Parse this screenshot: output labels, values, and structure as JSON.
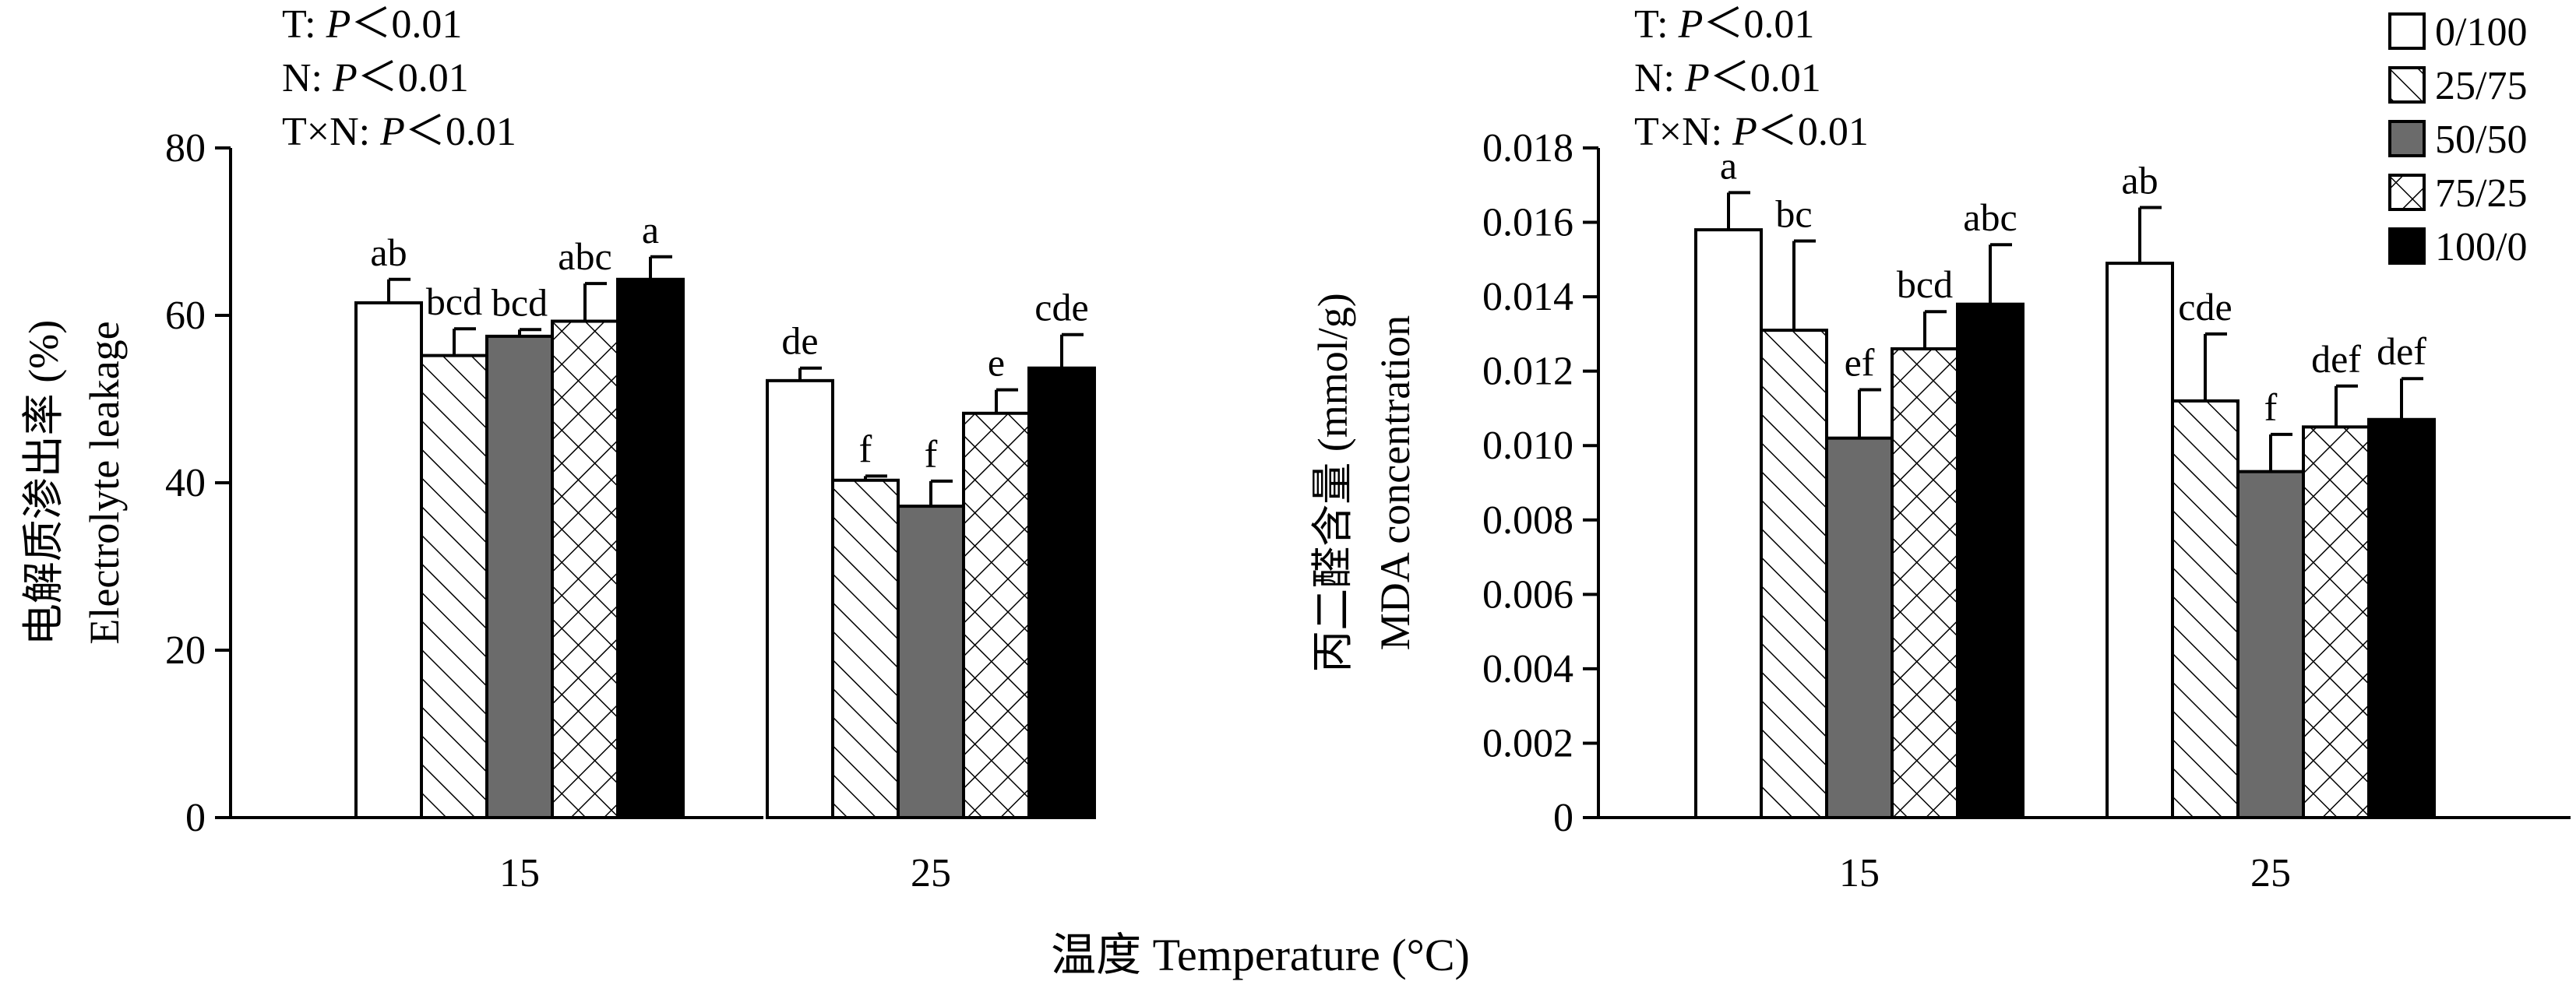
{
  "chart_data": [
    {
      "type": "bar",
      "ylabel_cn": "电解质渗出率 (%)",
      "ylabel_en": "Electrolyte leakage",
      "ylim": [
        0,
        80
      ],
      "yticks": [
        "0",
        "20",
        "40",
        "60",
        "80"
      ],
      "categories": [
        "15",
        "25"
      ],
      "stats": [
        {
          "prefix": "T: ",
          "p": "P",
          "rest": "＜0.01"
        },
        {
          "prefix": "N: ",
          "p": "P",
          "rest": "＜0.01"
        },
        {
          "prefix": "T×N: ",
          "p": "P",
          "rest": "＜0.01"
        }
      ],
      "series": [
        {
          "name": "0/100",
          "values": [
            61.5,
            52.2
          ],
          "errors": [
            2.8,
            1.5
          ],
          "letters": [
            "ab",
            "de"
          ]
        },
        {
          "name": "25/75",
          "values": [
            55.2,
            40.3
          ],
          "errors": [
            3.2,
            0.5
          ],
          "letters": [
            "bcd",
            "f"
          ]
        },
        {
          "name": "50/50",
          "values": [
            57.5,
            37.2
          ],
          "errors": [
            0.8,
            3.0
          ],
          "letters": [
            "bcd",
            "f"
          ]
        },
        {
          "name": "75/25",
          "values": [
            59.3,
            48.3
          ],
          "errors": [
            4.5,
            2.8
          ],
          "letters": [
            "abc",
            "e"
          ]
        },
        {
          "name": "100/0",
          "values": [
            64.3,
            53.7
          ],
          "errors": [
            2.7,
            4.0
          ],
          "letters": [
            "a",
            "cde"
          ]
        }
      ]
    },
    {
      "type": "bar",
      "ylabel_cn": "丙二醛含量 (mmol/g)",
      "ylabel_en": "MDA concentration",
      "ylim": [
        0,
        0.018
      ],
      "yticks": [
        "0",
        "0.002",
        "0.004",
        "0.006",
        "0.008",
        "0.010",
        "0.012",
        "0.014",
        "0.016",
        "0.018"
      ],
      "categories": [
        "15",
        "25"
      ],
      "stats": [
        {
          "prefix": "T: ",
          "p": "P",
          "rest": "＜0.01"
        },
        {
          "prefix": "N: ",
          "p": "P",
          "rest": "＜0.01"
        },
        {
          "prefix": "T×N: ",
          "p": "P",
          "rest": "＜0.01"
        }
      ],
      "series": [
        {
          "name": "0/100",
          "values": [
            0.0158,
            0.0149
          ],
          "errors": [
            0.001,
            0.0015
          ],
          "letters": [
            "a",
            "ab"
          ]
        },
        {
          "name": "25/75",
          "values": [
            0.0131,
            0.0112
          ],
          "errors": [
            0.0024,
            0.0018
          ],
          "letters": [
            "bc",
            "cde"
          ]
        },
        {
          "name": "50/50",
          "values": [
            0.0102,
            0.0093
          ],
          "errors": [
            0.0013,
            0.001
          ],
          "letters": [
            "ef",
            "f"
          ]
        },
        {
          "name": "75/25",
          "values": [
            0.0126,
            0.0105
          ],
          "errors": [
            0.001,
            0.0011
          ],
          "letters": [
            "bcd",
            "def"
          ]
        },
        {
          "name": "100/0",
          "values": [
            0.0138,
            0.0107
          ],
          "errors": [
            0.0016,
            0.0011
          ],
          "letters": [
            "abc",
            "def"
          ]
        }
      ]
    }
  ],
  "xlabel": "温度 Temperature (°C)",
  "legend": {
    "entries": [
      "0/100",
      "25/75",
      "50/50",
      "75/25",
      "100/0"
    ],
    "fills": [
      "white",
      "diagonal-hatch",
      "#6b6b6b",
      "cross-hatch",
      "#000000"
    ]
  }
}
